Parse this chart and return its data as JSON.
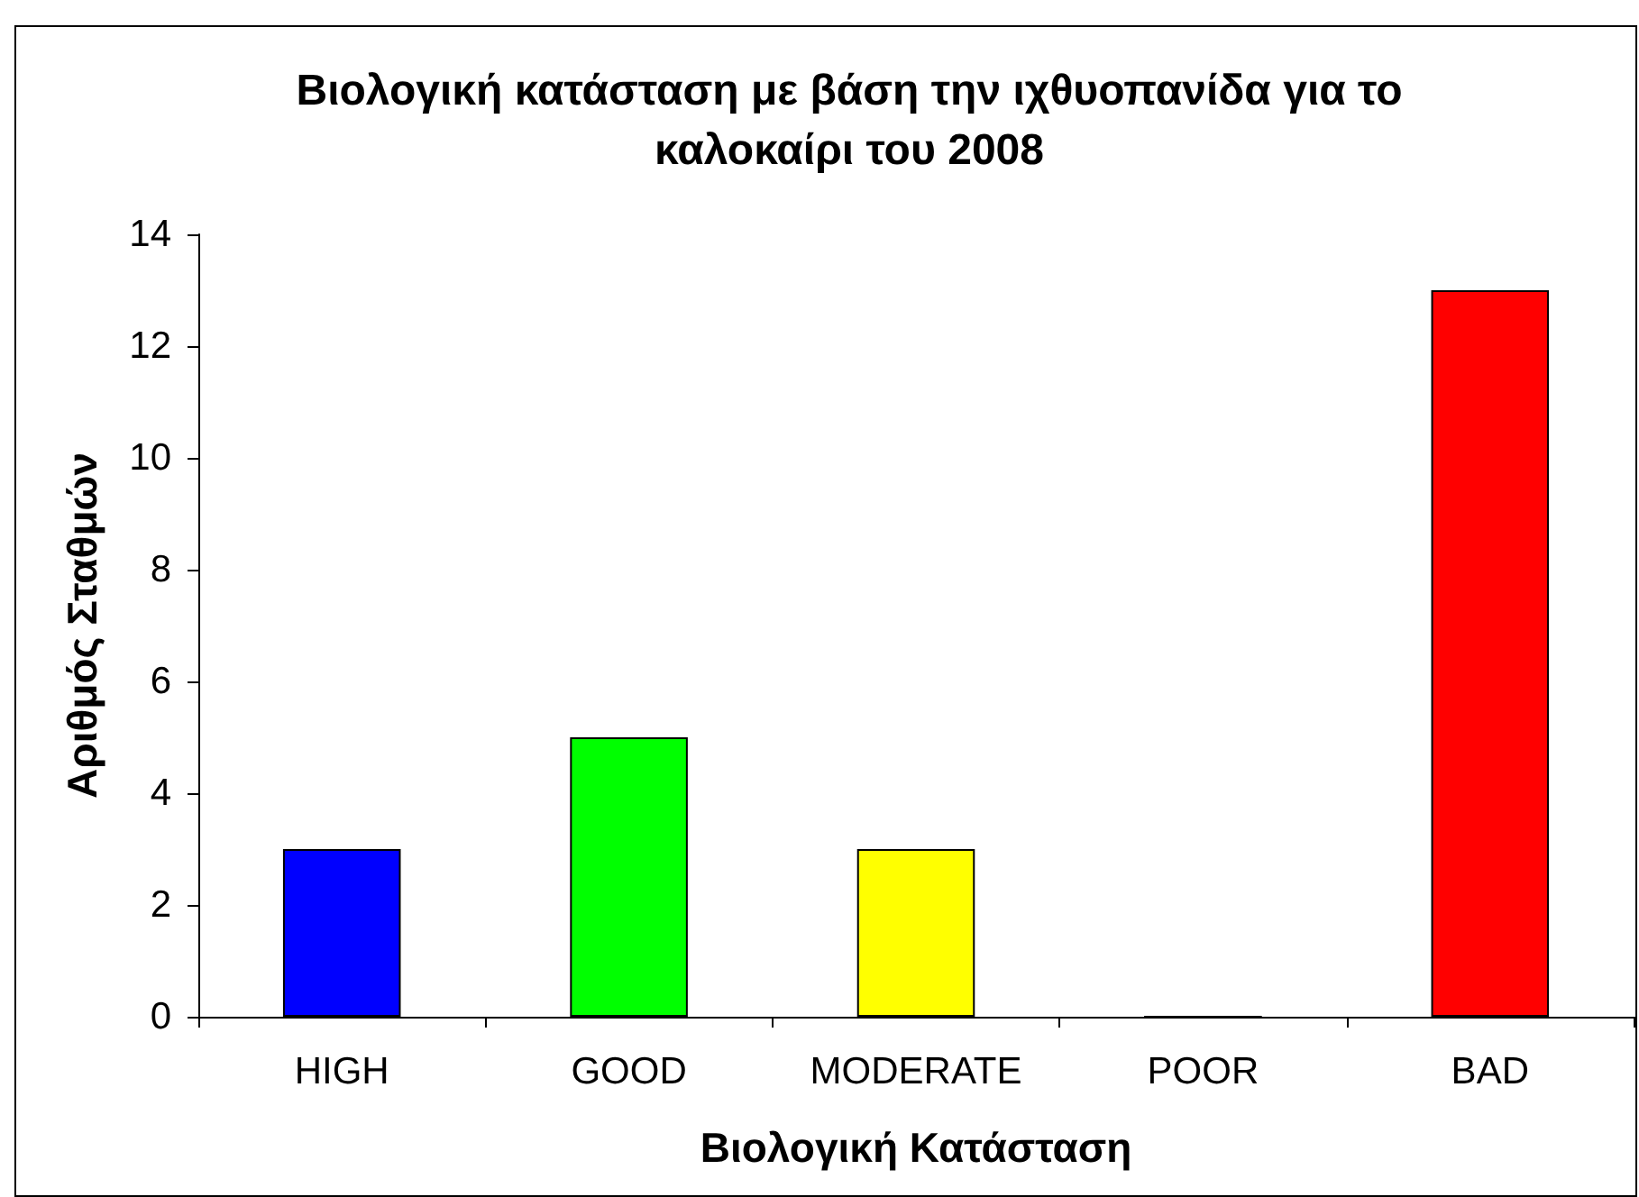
{
  "chart_data": {
    "type": "bar",
    "title": "Βιολογική κατάσταση με βάση την ιχθυοπανίδα για το\nκαλοκαίρι του 2008",
    "xlabel": "Βιολογική Κατάσταση",
    "ylabel": "Αριθμός Σταθμών",
    "categories": [
      "HIGH",
      "GOOD",
      "MODERATE",
      "POOR",
      "BAD"
    ],
    "values": [
      3,
      5,
      3,
      0,
      13
    ],
    "colors": [
      "#0000ff",
      "#00ff00",
      "#ffff00",
      null,
      "#ff0000"
    ],
    "ylim": [
      0,
      14
    ],
    "yticks": [
      0,
      2,
      4,
      6,
      8,
      10,
      12,
      14
    ],
    "grid": false
  }
}
